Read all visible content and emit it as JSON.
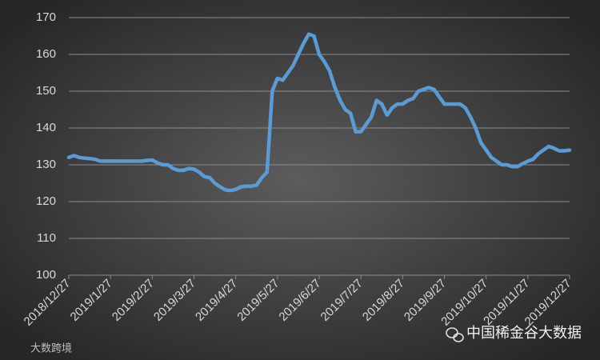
{
  "chart_data": {
    "type": "line",
    "categories": [
      "2018/12/27",
      null,
      null,
      null,
      null,
      null,
      null,
      null,
      "2019/1/27",
      null,
      null,
      null,
      null,
      null,
      null,
      null,
      "2019/2/27",
      null,
      null,
      null,
      null,
      null,
      null,
      null,
      "2019/3/27",
      null,
      null,
      null,
      null,
      null,
      null,
      null,
      "2019/4/27",
      null,
      null,
      null,
      null,
      null,
      null,
      null,
      "2019/5/27",
      null,
      null,
      null,
      null,
      null,
      null,
      null,
      "2019/6/27",
      null,
      null,
      null,
      null,
      null,
      null,
      null,
      "2019/7/27",
      null,
      null,
      null,
      null,
      null,
      null,
      null,
      "2019/8/27",
      null,
      null,
      null,
      null,
      null,
      null,
      null,
      "2019/9/27",
      null,
      null,
      null,
      null,
      null,
      null,
      null,
      "2019/10/27",
      null,
      null,
      null,
      null,
      null,
      null,
      null,
      "2019/11/27",
      null,
      null,
      null,
      null,
      null,
      null,
      null,
      "2019/12/27"
    ],
    "values": [
      132,
      132.5,
      132,
      131.8,
      131.7,
      131.5,
      131,
      131,
      131,
      131,
      131,
      131,
      131,
      131,
      131,
      131.2,
      131.3,
      130.5,
      130,
      130,
      129,
      128.5,
      128.5,
      129,
      128.8,
      128,
      126.8,
      126.5,
      125,
      124,
      123.2,
      123,
      123.3,
      124,
      124.2,
      124.2,
      124.5,
      126.5,
      128,
      150,
      153.5,
      153,
      155,
      157,
      160,
      163,
      165.5,
      165,
      160,
      158,
      155.5,
      151,
      147.5,
      145,
      144,
      139,
      139,
      141,
      143,
      147.5,
      146.5,
      143.5,
      145.5,
      146.5,
      146.5,
      147.5,
      148,
      150,
      150.5,
      151,
      150.5,
      148.5,
      146.5,
      146.5,
      146.5,
      146.5,
      145.5,
      143,
      140,
      136,
      134,
      132,
      131,
      130,
      130,
      129.5,
      129.5,
      130.3,
      131,
      131.5,
      133,
      134,
      135,
      134.5,
      133.8,
      133.8,
      134
    ],
    "color": "#5b9bd5",
    "ylim": [
      100,
      170
    ],
    "yticks": [
      100,
      110,
      120,
      130,
      140,
      150,
      160,
      170
    ],
    "grid": true,
    "annotations": [
      "中国稀金谷大数据",
      "大数跨境"
    ]
  }
}
